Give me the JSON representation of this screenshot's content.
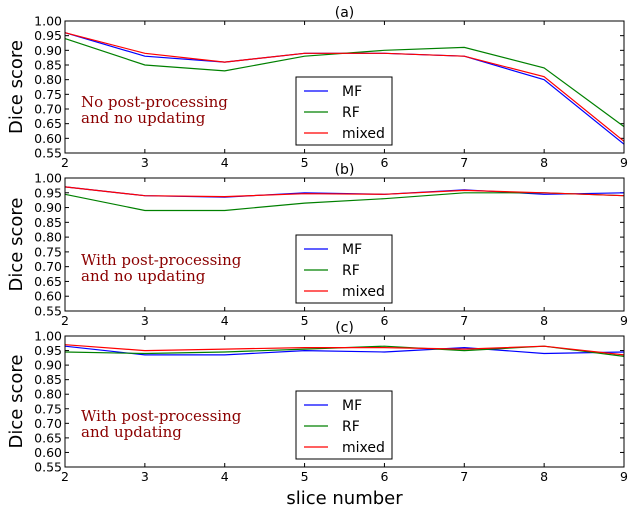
{
  "chart_data": [
    {
      "type": "line",
      "title": "(a)",
      "ylabel": "Dice score",
      "xlabel": "",
      "annotation": [
        "No post-processing",
        "and no updating"
      ],
      "x": [
        2,
        3,
        4,
        5,
        6,
        7,
        8,
        9
      ],
      "xticks": [
        "2",
        "3",
        "4",
        "5",
        "6",
        "7",
        "8",
        "9"
      ],
      "ylim": [
        0.55,
        1.0
      ],
      "yticks": [
        "0.55",
        "0.60",
        "0.65",
        "0.70",
        "0.75",
        "0.80",
        "0.85",
        "0.90",
        "0.95",
        "1.00"
      ],
      "legend": "center-bottom",
      "series": [
        {
          "name": "MF",
          "color": "#0000ff",
          "values": [
            0.96,
            0.88,
            0.86,
            0.89,
            0.89,
            0.88,
            0.8,
            0.58
          ]
        },
        {
          "name": "RF",
          "color": "#008000",
          "values": [
            0.94,
            0.85,
            0.83,
            0.88,
            0.9,
            0.91,
            0.84,
            0.64
          ]
        },
        {
          "name": "mixed",
          "color": "#ff0000",
          "values": [
            0.96,
            0.89,
            0.86,
            0.89,
            0.89,
            0.88,
            0.81,
            0.59
          ]
        }
      ]
    },
    {
      "type": "line",
      "title": "(b)",
      "ylabel": "Dice score",
      "xlabel": "",
      "annotation": [
        "With post-processing",
        "and no updating"
      ],
      "x": [
        2,
        3,
        4,
        5,
        6,
        7,
        8,
        9
      ],
      "xticks": [
        "2",
        "3",
        "4",
        "5",
        "6",
        "7",
        "8",
        "9"
      ],
      "ylim": [
        0.55,
        1.0
      ],
      "yticks": [
        "0.55",
        "0.60",
        "0.65",
        "0.70",
        "0.75",
        "0.80",
        "0.85",
        "0.90",
        "0.95",
        "1.00"
      ],
      "legend": "center-bottom",
      "series": [
        {
          "name": "MF",
          "color": "#0000ff",
          "values": [
            0.97,
            0.94,
            0.935,
            0.95,
            0.945,
            0.96,
            0.945,
            0.95
          ]
        },
        {
          "name": "RF",
          "color": "#008000",
          "values": [
            0.945,
            0.89,
            0.89,
            0.915,
            0.93,
            0.95,
            0.95,
            0.94
          ]
        },
        {
          "name": "mixed",
          "color": "#ff0000",
          "values": [
            0.97,
            0.94,
            0.937,
            0.947,
            0.945,
            0.958,
            0.95,
            0.94
          ]
        }
      ]
    },
    {
      "type": "line",
      "title": "(c)",
      "ylabel": "Dice score",
      "xlabel": "slice number",
      "annotation": [
        "With post-processing",
        "and updating"
      ],
      "x": [
        2,
        3,
        4,
        5,
        6,
        7,
        8,
        9
      ],
      "xticks": [
        "2",
        "3",
        "4",
        "5",
        "6",
        "7",
        "8",
        "9"
      ],
      "ylim": [
        0.55,
        1.0
      ],
      "yticks": [
        "0.55",
        "0.60",
        "0.65",
        "0.70",
        "0.75",
        "0.80",
        "0.85",
        "0.90",
        "0.95",
        "1.00"
      ],
      "legend": "center-bottom",
      "series": [
        {
          "name": "MF",
          "color": "#0000ff",
          "values": [
            0.965,
            0.935,
            0.935,
            0.95,
            0.945,
            0.96,
            0.94,
            0.945
          ]
        },
        {
          "name": "RF",
          "color": "#008000",
          "values": [
            0.945,
            0.94,
            0.945,
            0.955,
            0.965,
            0.95,
            0.965,
            0.93
          ]
        },
        {
          "name": "mixed",
          "color": "#ff0000",
          "values": [
            0.97,
            0.95,
            0.955,
            0.96,
            0.96,
            0.955,
            0.965,
            0.935
          ]
        }
      ]
    }
  ]
}
